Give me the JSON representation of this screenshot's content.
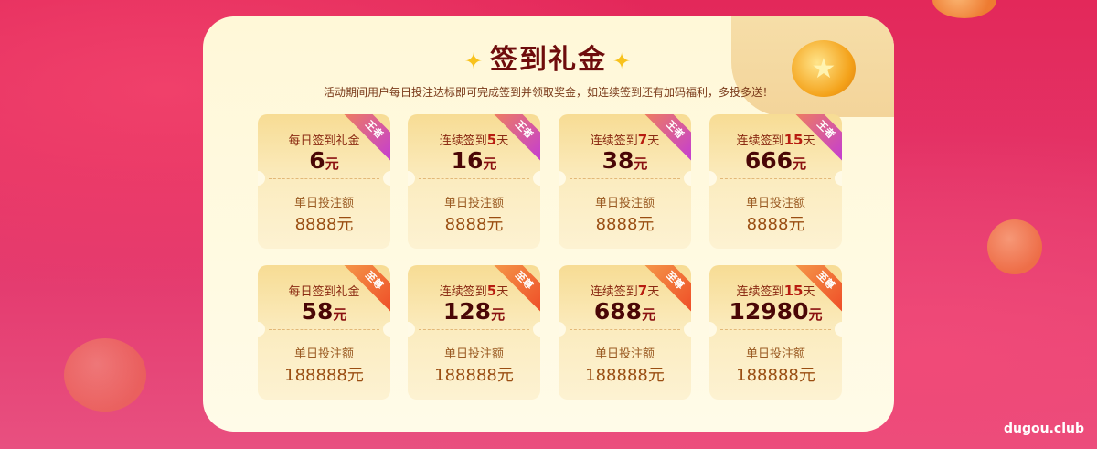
{
  "title": "签到礼金",
  "subtitle": "活动期间用户每日投注达标即可完成签到并领取奖金，如连续签到还有加码福利，多投多送！",
  "colors": {
    "ribbon_top": "#c23ad8",
    "ribbon_bottom": "#ee4a26",
    "title": "#6e0c0c",
    "background": "#e3285a"
  },
  "icons": [
    "sparkle-icon",
    "gold-coin-icon"
  ],
  "watermark": "dugou.club",
  "rows": [
    {
      "ribbon": "王者",
      "cards": [
        {
          "cond_prefix": "每日签到礼金",
          "cond_days": "",
          "cond_suffix": "",
          "amount": "6",
          "unit": "元",
          "req_label": "单日投注额",
          "req": "8888元"
        },
        {
          "cond_prefix": "连续签到",
          "cond_days": "5",
          "cond_suffix": "天",
          "amount": "16",
          "unit": "元",
          "req_label": "单日投注额",
          "req": "8888元"
        },
        {
          "cond_prefix": "连续签到",
          "cond_days": "7",
          "cond_suffix": "天",
          "amount": "38",
          "unit": "元",
          "req_label": "单日投注额",
          "req": "8888元"
        },
        {
          "cond_prefix": "连续签到",
          "cond_days": "15",
          "cond_suffix": "天",
          "amount": "666",
          "unit": "元",
          "req_label": "单日投注额",
          "req": "8888元"
        }
      ]
    },
    {
      "ribbon": "至尊",
      "cards": [
        {
          "cond_prefix": "每日签到礼金",
          "cond_days": "",
          "cond_suffix": "",
          "amount": "58",
          "unit": "元",
          "req_label": "单日投注额",
          "req": "188888元"
        },
        {
          "cond_prefix": "连续签到",
          "cond_days": "5",
          "cond_suffix": "天",
          "amount": "128",
          "unit": "元",
          "req_label": "单日投注额",
          "req": "188888元"
        },
        {
          "cond_prefix": "连续签到",
          "cond_days": "7",
          "cond_suffix": "天",
          "amount": "688",
          "unit": "元",
          "req_label": "单日投注额",
          "req": "188888元"
        },
        {
          "cond_prefix": "连续签到",
          "cond_days": "15",
          "cond_suffix": "天",
          "amount": "12980",
          "unit": "元",
          "req_label": "单日投注额",
          "req": "188888元"
        }
      ]
    }
  ]
}
